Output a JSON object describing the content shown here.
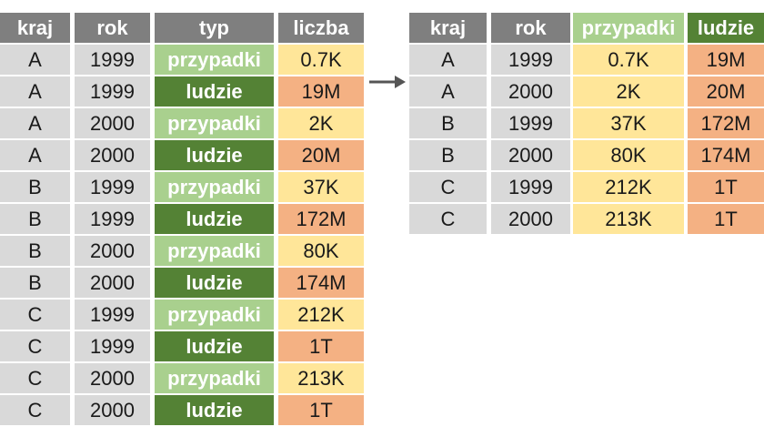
{
  "left_table": {
    "header": [
      "kraj",
      "rok",
      "typ",
      "liczba"
    ],
    "rows": [
      [
        "A",
        "1999",
        "przypadki",
        "0.7K"
      ],
      [
        "A",
        "1999",
        "ludzie",
        "19M"
      ],
      [
        "A",
        "2000",
        "przypadki",
        "2K"
      ],
      [
        "A",
        "2000",
        "ludzie",
        "20M"
      ],
      [
        "B",
        "1999",
        "przypadki",
        "37K"
      ],
      [
        "B",
        "1999",
        "ludzie",
        "172M"
      ],
      [
        "B",
        "2000",
        "przypadki",
        "80K"
      ],
      [
        "B",
        "2000",
        "ludzie",
        "174M"
      ],
      [
        "C",
        "1999",
        "przypadki",
        "212K"
      ],
      [
        "C",
        "1999",
        "ludzie",
        "1T"
      ],
      [
        "C",
        "2000",
        "przypadki",
        "213K"
      ],
      [
        "C",
        "2000",
        "ludzie",
        "1T"
      ]
    ]
  },
  "right_table": {
    "header": [
      "kraj",
      "rok",
      "przypadki",
      "ludzie"
    ],
    "rows": [
      [
        "A",
        "1999",
        "0.7K",
        "19M"
      ],
      [
        "A",
        "2000",
        "2K",
        "20M"
      ],
      [
        "B",
        "1999",
        "37K",
        "172M"
      ],
      [
        "B",
        "2000",
        "80K",
        "174M"
      ],
      [
        "C",
        "1999",
        "212K",
        "1T"
      ],
      [
        "C",
        "2000",
        "213K",
        "1T"
      ]
    ]
  }
}
